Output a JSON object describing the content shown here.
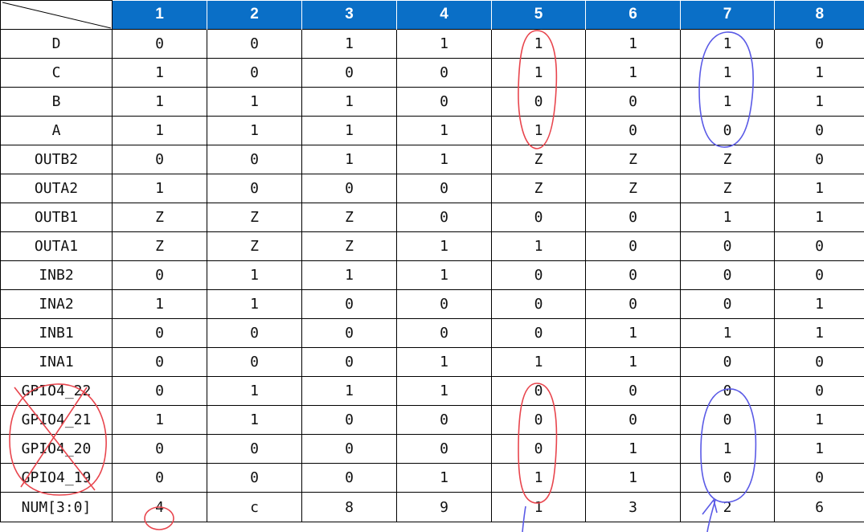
{
  "table": {
    "columns": [
      "1",
      "2",
      "3",
      "4",
      "5",
      "6",
      "7",
      "8"
    ],
    "rows": [
      {
        "label": "D",
        "values": [
          "0",
          "0",
          "1",
          "1",
          "1",
          "1",
          "1",
          "0"
        ]
      },
      {
        "label": "C",
        "values": [
          "1",
          "0",
          "0",
          "0",
          "1",
          "1",
          "1",
          "1"
        ]
      },
      {
        "label": "B",
        "values": [
          "1",
          "1",
          "1",
          "0",
          "0",
          "0",
          "1",
          "1"
        ]
      },
      {
        "label": "A",
        "values": [
          "1",
          "1",
          "1",
          "1",
          "1",
          "0",
          "0",
          "0"
        ]
      },
      {
        "label": "OUTB2",
        "values": [
          "0",
          "0",
          "1",
          "1",
          "Z",
          "Z",
          "Z",
          "0"
        ]
      },
      {
        "label": "OUTA2",
        "values": [
          "1",
          "0",
          "0",
          "0",
          "Z",
          "Z",
          "Z",
          "1"
        ]
      },
      {
        "label": "OUTB1",
        "values": [
          "Z",
          "Z",
          "Z",
          "0",
          "0",
          "0",
          "1",
          "1"
        ]
      },
      {
        "label": "OUTA1",
        "values": [
          "Z",
          "Z",
          "Z",
          "1",
          "1",
          "0",
          "0",
          "0"
        ]
      },
      {
        "label": "INB2",
        "values": [
          "0",
          "1",
          "1",
          "1",
          "0",
          "0",
          "0",
          "0"
        ]
      },
      {
        "label": "INA2",
        "values": [
          "1",
          "1",
          "0",
          "0",
          "0",
          "0",
          "0",
          "1"
        ]
      },
      {
        "label": "INB1",
        "values": [
          "0",
          "0",
          "0",
          "0",
          "0",
          "1",
          "1",
          "1"
        ]
      },
      {
        "label": "INA1",
        "values": [
          "0",
          "0",
          "0",
          "1",
          "1",
          "1",
          "0",
          "0"
        ]
      },
      {
        "label": "GPIO4_22",
        "values": [
          "0",
          "1",
          "1",
          "1",
          "0",
          "0",
          "0",
          "0"
        ]
      },
      {
        "label": "GPIO4_21",
        "values": [
          "1",
          "1",
          "0",
          "0",
          "0",
          "0",
          "0",
          "1"
        ]
      },
      {
        "label": "GPIO4_20",
        "values": [
          "0",
          "0",
          "0",
          "0",
          "0",
          "1",
          "1",
          "1"
        ]
      },
      {
        "label": "GPIO4_19",
        "values": [
          "0",
          "0",
          "0",
          "1",
          "1",
          "1",
          "0",
          "0"
        ]
      },
      {
        "label": "NUM[3:0]",
        "values": [
          "4",
          "c",
          "8",
          "9",
          "1",
          "3",
          "2",
          "6"
        ]
      }
    ]
  },
  "colors": {
    "header_bg": "#0a6fc7",
    "header_text": "#ffffff",
    "red_annotation": "#e8454d",
    "blue_annotation": "#5a5ae6"
  }
}
